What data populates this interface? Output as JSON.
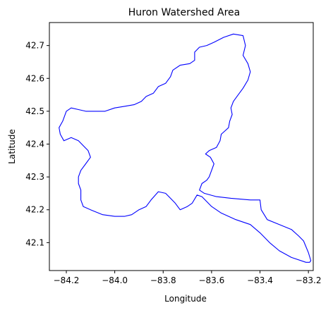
{
  "chart_data": {
    "type": "map",
    "title": "Huron Watershed Area",
    "xlabel": "Longitude",
    "ylabel": "Latitude",
    "xlim": [
      -84.27,
      -83.18
    ],
    "ylim": [
      42.015,
      42.77
    ],
    "xticks": [
      {
        "value": -84.2,
        "label": "−84.2"
      },
      {
        "value": -84.0,
        "label": "−84.0"
      },
      {
        "value": -83.8,
        "label": "−83.8"
      },
      {
        "value": -83.6,
        "label": "−83.6"
      },
      {
        "value": -83.4,
        "label": "−83.4"
      },
      {
        "value": -83.2,
        "label": "−83.2"
      }
    ],
    "yticks": [
      {
        "value": 42.1,
        "label": "42.1"
      },
      {
        "value": 42.2,
        "label": "42.2"
      },
      {
        "value": 42.3,
        "label": "42.3"
      },
      {
        "value": 42.4,
        "label": "42.4"
      },
      {
        "value": 42.5,
        "label": "42.5"
      },
      {
        "value": 42.6,
        "label": "42.6"
      },
      {
        "value": 42.7,
        "label": "42.7"
      }
    ],
    "grid": false,
    "outline_color": "#0000ff",
    "boundary": [
      [
        -83.55,
        42.725
      ],
      [
        -83.51,
        42.735
      ],
      [
        -83.47,
        42.73
      ],
      [
        -83.46,
        42.7
      ],
      [
        -83.47,
        42.67
      ],
      [
        -83.45,
        42.645
      ],
      [
        -83.44,
        42.62
      ],
      [
        -83.45,
        42.595
      ],
      [
        -83.47,
        42.57
      ],
      [
        -83.49,
        42.55
      ],
      [
        -83.51,
        42.53
      ],
      [
        -83.52,
        42.51
      ],
      [
        -83.515,
        42.49
      ],
      [
        -83.525,
        42.47
      ],
      [
        -83.53,
        42.45
      ],
      [
        -83.545,
        42.44
      ],
      [
        -83.56,
        42.43
      ],
      [
        -83.565,
        42.41
      ],
      [
        -83.58,
        42.39
      ],
      [
        -83.61,
        42.38
      ],
      [
        -83.625,
        42.37
      ],
      [
        -83.605,
        42.36
      ],
      [
        -83.59,
        42.34
      ],
      [
        -83.6,
        42.32
      ],
      [
        -83.61,
        42.3
      ],
      [
        -83.62,
        42.29
      ],
      [
        -83.64,
        42.28
      ],
      [
        -83.65,
        42.26
      ],
      [
        -83.63,
        42.25
      ],
      [
        -83.58,
        42.24
      ],
      [
        -83.52,
        42.235
      ],
      [
        -83.44,
        42.23
      ],
      [
        -83.4,
        42.23
      ],
      [
        -83.395,
        42.2
      ],
      [
        -83.37,
        42.17
      ],
      [
        -83.32,
        42.155
      ],
      [
        -83.27,
        42.14
      ],
      [
        -83.24,
        42.12
      ],
      [
        -83.22,
        42.105
      ],
      [
        -83.2,
        42.07
      ],
      [
        -83.19,
        42.045
      ],
      [
        -83.195,
        42.04
      ],
      [
        -83.21,
        42.04
      ],
      [
        -83.27,
        42.055
      ],
      [
        -83.32,
        42.075
      ],
      [
        -83.36,
        42.1
      ],
      [
        -83.4,
        42.13
      ],
      [
        -83.44,
        42.155
      ],
      [
        -83.5,
        42.17
      ],
      [
        -83.56,
        42.19
      ],
      [
        -83.6,
        42.21
      ],
      [
        -83.64,
        42.24
      ],
      [
        -83.66,
        42.245
      ],
      [
        -83.68,
        42.22
      ],
      [
        -83.7,
        42.21
      ],
      [
        -83.73,
        42.2
      ],
      [
        -83.75,
        42.22
      ],
      [
        -83.77,
        42.235
      ],
      [
        -83.79,
        42.25
      ],
      [
        -83.82,
        42.255
      ],
      [
        -83.85,
        42.23
      ],
      [
        -83.87,
        42.21
      ],
      [
        -83.9,
        42.2
      ],
      [
        -83.93,
        42.185
      ],
      [
        -83.96,
        42.18
      ],
      [
        -84.0,
        42.18
      ],
      [
        -84.05,
        42.185
      ],
      [
        -84.1,
        42.2
      ],
      [
        -84.13,
        42.21
      ],
      [
        -84.14,
        42.23
      ],
      [
        -84.14,
        42.26
      ],
      [
        -84.15,
        42.28
      ],
      [
        -84.15,
        42.3
      ],
      [
        -84.14,
        42.32
      ],
      [
        -84.12,
        42.34
      ],
      [
        -84.1,
        42.36
      ],
      [
        -84.11,
        42.38
      ],
      [
        -84.13,
        42.395
      ],
      [
        -84.15,
        42.41
      ],
      [
        -84.18,
        42.42
      ],
      [
        -84.21,
        42.41
      ],
      [
        -84.225,
        42.43
      ],
      [
        -84.23,
        42.45
      ],
      [
        -84.215,
        42.47
      ],
      [
        -84.2,
        42.5
      ],
      [
        -84.18,
        42.51
      ],
      [
        -84.15,
        42.505
      ],
      [
        -84.12,
        42.5
      ],
      [
        -84.08,
        42.5
      ],
      [
        -84.04,
        42.5
      ],
      [
        -84.0,
        42.51
      ],
      [
        -83.96,
        42.515
      ],
      [
        -83.92,
        42.52
      ],
      [
        -83.89,
        42.53
      ],
      [
        -83.87,
        42.545
      ],
      [
        -83.84,
        42.555
      ],
      [
        -83.82,
        42.575
      ],
      [
        -83.79,
        42.585
      ],
      [
        -83.77,
        42.605
      ],
      [
        -83.76,
        42.625
      ],
      [
        -83.73,
        42.64
      ],
      [
        -83.69,
        42.645
      ],
      [
        -83.67,
        42.655
      ],
      [
        -83.67,
        42.68
      ],
      [
        -83.65,
        42.695
      ],
      [
        -83.62,
        42.7
      ],
      [
        -83.59,
        42.71
      ],
      [
        -83.55,
        42.725
      ]
    ]
  }
}
